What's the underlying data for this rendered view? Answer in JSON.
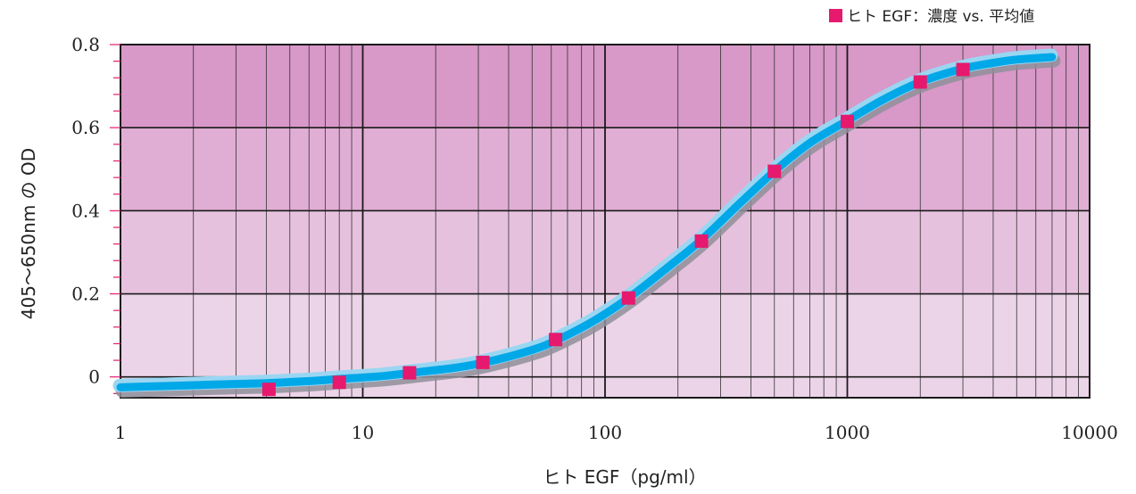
{
  "chart_data": {
    "type": "scatter",
    "title": "",
    "xlabel": "ヒト EGF（pg/ml）",
    "ylabel": "405～650nm の OD",
    "xscale": "log",
    "xlim": [
      1,
      10000
    ],
    "ylim": [
      -0.05,
      0.8
    ],
    "x_ticks": [
      1,
      10,
      100,
      1000,
      10000
    ],
    "x_tick_labels": [
      "1",
      "10",
      "100",
      "1000",
      "10000"
    ],
    "y_ticks": [
      0,
      0.2,
      0.4,
      0.6,
      0.8
    ],
    "y_tick_labels": [
      "0",
      "0.2",
      "0.4",
      "0.6",
      "0.8"
    ],
    "grid": true,
    "legend_position": "top-right",
    "series": [
      {
        "name": "ヒト EGF：濃度 vs. 平均値",
        "color": "#e6196e",
        "marker": "square",
        "x": [
          4.1,
          8.0,
          15.6,
          31.3,
          62.5,
          125,
          250,
          500,
          1000,
          2000,
          3000
        ],
        "y": [
          -0.03,
          -0.013,
          0.01,
          0.035,
          0.09,
          0.19,
          0.327,
          0.495,
          0.615,
          0.71,
          0.74
        ]
      }
    ],
    "fit_curve": {
      "color": "#00a8e8",
      "x": [
        1,
        1.5,
        2,
        3,
        4,
        6,
        8,
        12,
        16,
        24,
        32,
        50,
        64,
        90,
        125,
        180,
        250,
        360,
        500,
        700,
        1000,
        1400,
        2000,
        3000,
        4000,
        5000,
        7000
      ],
      "y": [
        -0.025,
        -0.022,
        -0.02,
        -0.017,
        -0.015,
        -0.01,
        -0.005,
        0.002,
        0.01,
        0.022,
        0.035,
        0.065,
        0.09,
        0.135,
        0.19,
        0.262,
        0.33,
        0.418,
        0.495,
        0.563,
        0.617,
        0.667,
        0.71,
        0.742,
        0.756,
        0.764,
        0.77
      ]
    },
    "background_bands": [
      "#ecd4e8",
      "#e6c1de",
      "#e0aed4",
      "#d898c8"
    ]
  }
}
